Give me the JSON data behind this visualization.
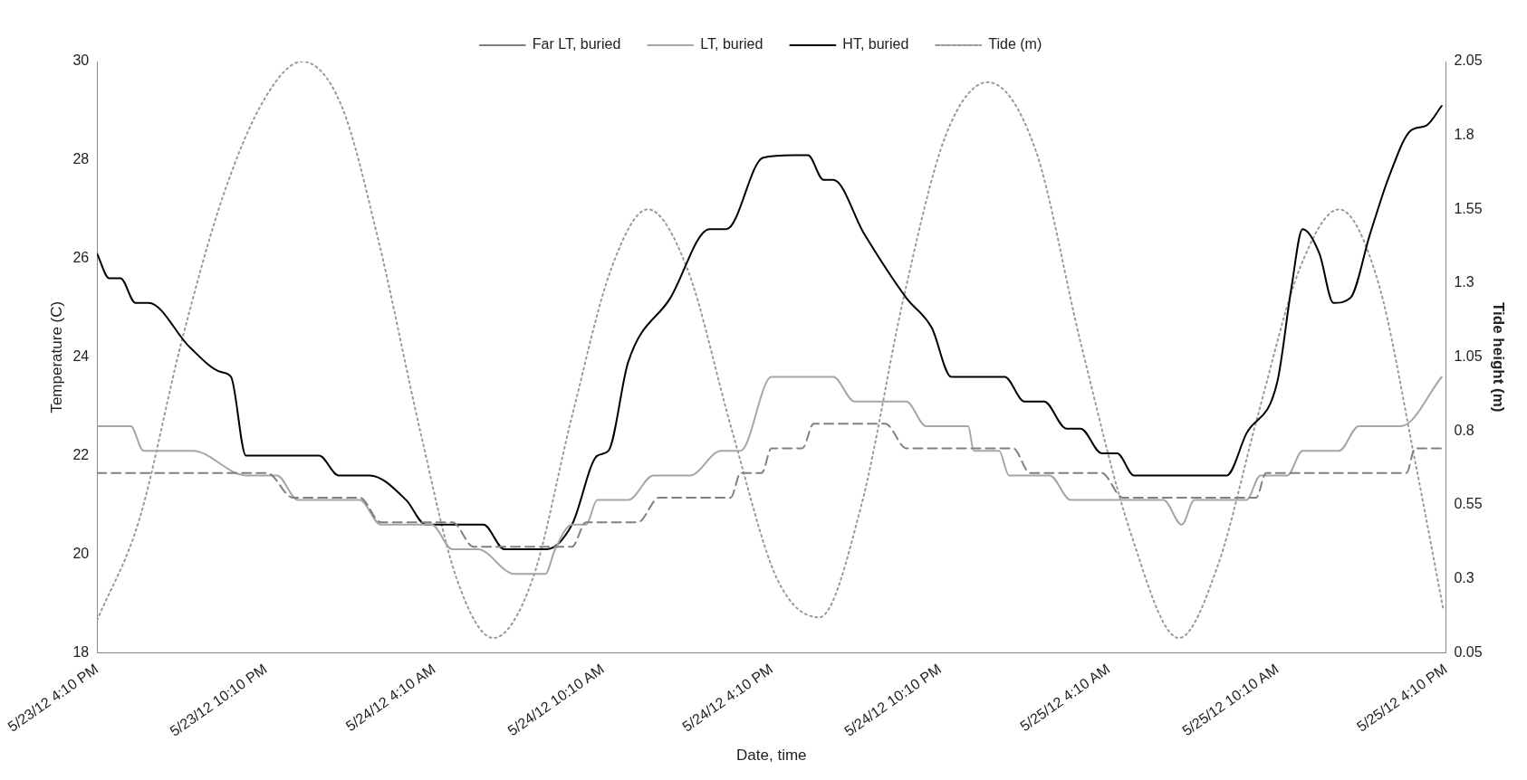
{
  "chart_data": {
    "type": "line",
    "xlabel": "Date, time",
    "ylabel": "Temperature (C)",
    "y2label": "Tide height (m)",
    "xlim": [
      "--05-23T16:10",
      "--05-25T16:10"
    ],
    "xticks": [
      {
        "value": "--05-23T16:10",
        "label": "5/23/12 4:10 PM"
      },
      {
        "value": "--05-23T22:10",
        "label": "5/23/12 10:10 PM"
      },
      {
        "value": "--05-24T04:10",
        "label": "5/24/12 4:10 AM"
      },
      {
        "value": "--05-24T10:10",
        "label": "5/24/12 10:10 AM"
      },
      {
        "value": "--05-24T16:10",
        "label": "5/24/12 4:10 PM"
      },
      {
        "value": "--05-24T22:10",
        "label": "5/24/12 10:10 PM"
      },
      {
        "value": "--05-25T04:10",
        "label": "5/25/12 4:10 AM"
      },
      {
        "value": "--05-25T10:10",
        "label": "5/25/12 10:10 AM"
      },
      {
        "value": "--05-25T16:10",
        "label": "5/25/12 4:10 PM"
      }
    ],
    "ylim": [
      18,
      30
    ],
    "yticks": [
      18,
      20,
      22,
      24,
      26,
      28,
      30
    ],
    "y2lim": [
      0.05,
      2.05
    ],
    "y2ticks": [
      0.05,
      0.3,
      0.55,
      0.8,
      1.05,
      1.3,
      1.55,
      1.8,
      2.05
    ],
    "legend": "top",
    "grid": false,
    "marker": "none",
    "series": [
      {
        "name": "Far LT, buried",
        "color": "#808080",
        "line_style": "dashed",
        "x": [
          "--05-23T16:10",
          "--05-23T22:13",
          "--05-23T23:08",
          "--05-24T01:31",
          "--05-24T02:16",
          "--05-24T04:49",
          "--05-24T05:34",
          "--05-24T09:04",
          "--05-24T09:34",
          "--05-24T11:25",
          "--05-24T12:10",
          "--05-24T14:43",
          "--05-24T15:04",
          "--05-24T15:49",
          "--05-24T16:10",
          "--05-24T17:16",
          "--05-24T17:40",
          "--05-24T20:13",
          "--05-24T20:58",
          "--05-25T00:46",
          "--05-25T01:22",
          "--05-25T03:55",
          "--05-25T04:40",
          "--05-25T09:25",
          "--05-25T09:46",
          "--05-25T14:46",
          "--05-25T15:04",
          "--05-25T16:01"
        ],
        "values": [
          21.65,
          21.65,
          21.15,
          21.15,
          20.65,
          20.65,
          20.15,
          20.15,
          20.65,
          20.65,
          21.15,
          21.15,
          21.65,
          21.65,
          22.15,
          22.15,
          22.65,
          22.65,
          22.15,
          22.15,
          21.65,
          21.65,
          21.15,
          21.15,
          21.65,
          21.65,
          22.15,
          22.15
        ]
      },
      {
        "name": "LT, buried",
        "color": "#a6a6a6",
        "line_style": "solid",
        "x": [
          "--05-23T16:10",
          "--05-23T17:22",
          "--05-23T17:49",
          "--05-23T19:04",
          "--05-23T19:34",
          "--05-23T21:28",
          "--05-23T21:52",
          "--05-23T22:34",
          "--05-23T23:19",
          "--05-24T01:31",
          "--05-24T02:16",
          "--05-24T04:04",
          "--05-24T04:49",
          "--05-24T05:43",
          "--05-24T07:01",
          "--05-24T08:07",
          "--05-24T08:28",
          "--05-24T09:04",
          "--05-24T09:34",
          "--05-24T09:58",
          "--05-24T11:04",
          "--05-24T11:58",
          "--05-24T13:16",
          "--05-24T14:22",
          "--05-24T15:04",
          "--05-24T16:10",
          "--05-24T18:22",
          "--05-24T19:07",
          "--05-24T20:58",
          "--05-24T21:40",
          "--05-24T23:10",
          "--05-24T23:22",
          "--05-25T00:16",
          "--05-25T00:37",
          "--05-25T02:04",
          "--05-25T02:49",
          "--05-25T06:07",
          "--05-25T06:46",
          "--05-25T07:13",
          "--05-25T09:04",
          "--05-25T09:34",
          "--05-25T10:31",
          "--05-25T11:04",
          "--05-25T12:22",
          "--05-25T13:04",
          "--05-25T14:34",
          "--05-25T16:01"
        ],
        "values": [
          22.6,
          22.6,
          22.1,
          22.1,
          22.1,
          21.6,
          21.6,
          21.6,
          21.1,
          21.1,
          20.6,
          20.6,
          20.1,
          20.1,
          19.6,
          19.6,
          20.1,
          20.6,
          20.6,
          21.1,
          21.1,
          21.6,
          21.6,
          22.1,
          22.1,
          23.6,
          23.6,
          23.1,
          23.1,
          22.6,
          22.6,
          22.1,
          22.1,
          21.6,
          21.6,
          21.1,
          21.1,
          20.6,
          21.1,
          21.1,
          21.6,
          21.6,
          22.1,
          22.1,
          22.6,
          22.6,
          23.6
        ]
      },
      {
        "name": "HT, buried",
        "color": "#000000",
        "line_style": "solid",
        "x": [
          "--05-23T16:10",
          "--05-23T16:36",
          "--05-23T17:00",
          "--05-23T17:32",
          "--05-23T18:00",
          "--05-23T19:28",
          "--05-23T20:34",
          "--05-23T20:56",
          "--05-23T21:28",
          "--05-24T00:04",
          "--05-24T00:46",
          "--05-24T01:52",
          "--05-24T03:10",
          "--05-24T03:52",
          "--05-24T05:55",
          "--05-24T06:40",
          "--05-24T08:10",
          "--05-24T09:04",
          "--05-24T09:58",
          "--05-24T10:22",
          "--05-24T11:04",
          "--05-24T12:34",
          "--05-24T13:58",
          "--05-24T14:34",
          "--05-24T15:52",
          "--05-24T16:58",
          "--05-24T17:28",
          "--05-24T18:01",
          "--05-24T18:22",
          "--05-24T19:28",
          "--05-24T20:58",
          "--05-24T21:52",
          "--05-24T22:34",
          "--05-25T00:28",
          "--05-25T01:10",
          "--05-25T01:52",
          "--05-25T02:40",
          "--05-25T03:10",
          "--05-25T03:55",
          "--05-25T04:28",
          "--05-25T05:04",
          "--05-25T08:22",
          "--05-25T09:04",
          "--05-25T10:10",
          "--05-25T10:40",
          "--05-25T11:04",
          "--05-25T11:40",
          "--05-25T12:10",
          "--05-25T12:46",
          "--05-25T13:28",
          "--05-25T14:10",
          "--05-25T14:55",
          "--05-25T15:28",
          "--05-25T16:01"
        ],
        "values": [
          26.1,
          25.6,
          25.6,
          25.1,
          25.1,
          24.2,
          23.7,
          23.6,
          22.0,
          22.0,
          21.6,
          21.6,
          21.1,
          20.6,
          20.6,
          20.1,
          20.1,
          20.6,
          22.0,
          22.1,
          23.9,
          25.2,
          26.6,
          26.6,
          28.05,
          28.1,
          28.1,
          27.6,
          27.6,
          26.5,
          25.2,
          24.6,
          23.6,
          23.6,
          23.1,
          23.1,
          22.55,
          22.55,
          22.05,
          22.05,
          21.6,
          21.6,
          22.45,
          23.5,
          25.4,
          26.6,
          26.1,
          25.1,
          25.2,
          26.5,
          27.7,
          28.6,
          28.7,
          29.1
        ]
      },
      {
        "name": "Tide (m)",
        "color": "#999999",
        "line_style": "dotted",
        "axis": "y2",
        "x": [
          "--05-23T16:10",
          "--05-23T17:40",
          "--05-23T19:10",
          "--05-23T20:40",
          "--05-23T22:10",
          "--05-23T23:28",
          "--05-24T00:52",
          "--05-24T02:10",
          "--05-24T03:40",
          "--05-24T04:58",
          "--05-24T06:16",
          "--05-24T07:40",
          "--05-24T09:04",
          "--05-24T10:28",
          "--05-24T11:46",
          "--05-24T13:10",
          "--05-24T14:46",
          "--05-24T16:22",
          "--05-24T17:52",
          "--05-24T19:22",
          "--05-24T20:52",
          "--05-24T22:22",
          "--05-24T23:52",
          "--05-25T01:34",
          "--05-25T03:10",
          "--05-25T04:58",
          "--05-25T06:40",
          "--05-25T08:04",
          "--05-25T09:28",
          "--05-25T10:58",
          "--05-25T12:22",
          "--05-25T13:46",
          "--05-25T15:04",
          "--05-25T16:04"
        ],
        "values": [
          0.16,
          0.5,
          1.1,
          1.6,
          1.93,
          2.05,
          1.9,
          1.45,
          0.8,
          0.3,
          0.1,
          0.3,
          0.85,
          1.35,
          1.55,
          1.35,
          0.8,
          0.3,
          0.17,
          0.55,
          1.25,
          1.8,
          1.98,
          1.75,
          1.1,
          0.45,
          0.1,
          0.35,
          0.85,
          1.35,
          1.55,
          1.3,
          0.7,
          0.2
        ]
      }
    ]
  }
}
